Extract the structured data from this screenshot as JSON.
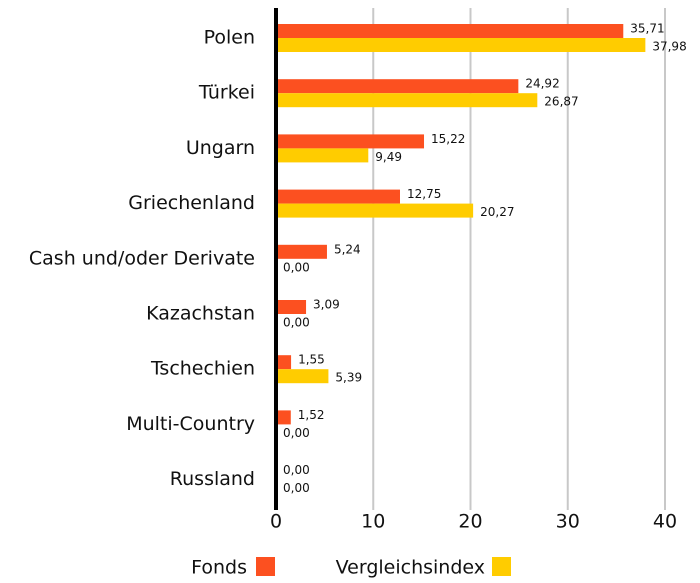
{
  "chart_data": {
    "type": "bar",
    "orientation": "horizontal",
    "categories": [
      "Polen",
      "Türkei",
      "Ungarn",
      "Griechenland",
      "Cash und/oder Derivate",
      "Kazachstan",
      "Tschechien",
      "Multi-Country",
      "Russland"
    ],
    "series": [
      {
        "name": "Fonds",
        "color": "#fc5020",
        "values": [
          35.71,
          24.92,
          15.22,
          12.75,
          5.24,
          3.09,
          1.55,
          1.52,
          0
        ],
        "value_labels": [
          "35,71",
          "24,92",
          "15,22",
          "12,75",
          "5,24",
          "3,09",
          "1,55",
          "1,52",
          "0,00"
        ]
      },
      {
        "name": "Vergleichsindex",
        "color": "#ffcc00",
        "values": [
          37.98,
          26.87,
          9.49,
          20.27,
          0,
          0,
          5.39,
          0,
          0
        ],
        "value_labels": [
          "37,98",
          "26,87",
          "9,49",
          "20,27",
          "0,00",
          "0,00",
          "5,39",
          "0,00",
          "0,00"
        ]
      }
    ],
    "xlim": [
      0,
      40
    ],
    "xticks": [
      0,
      10,
      20,
      30,
      40
    ],
    "grid": true,
    "legend": "bottom"
  }
}
